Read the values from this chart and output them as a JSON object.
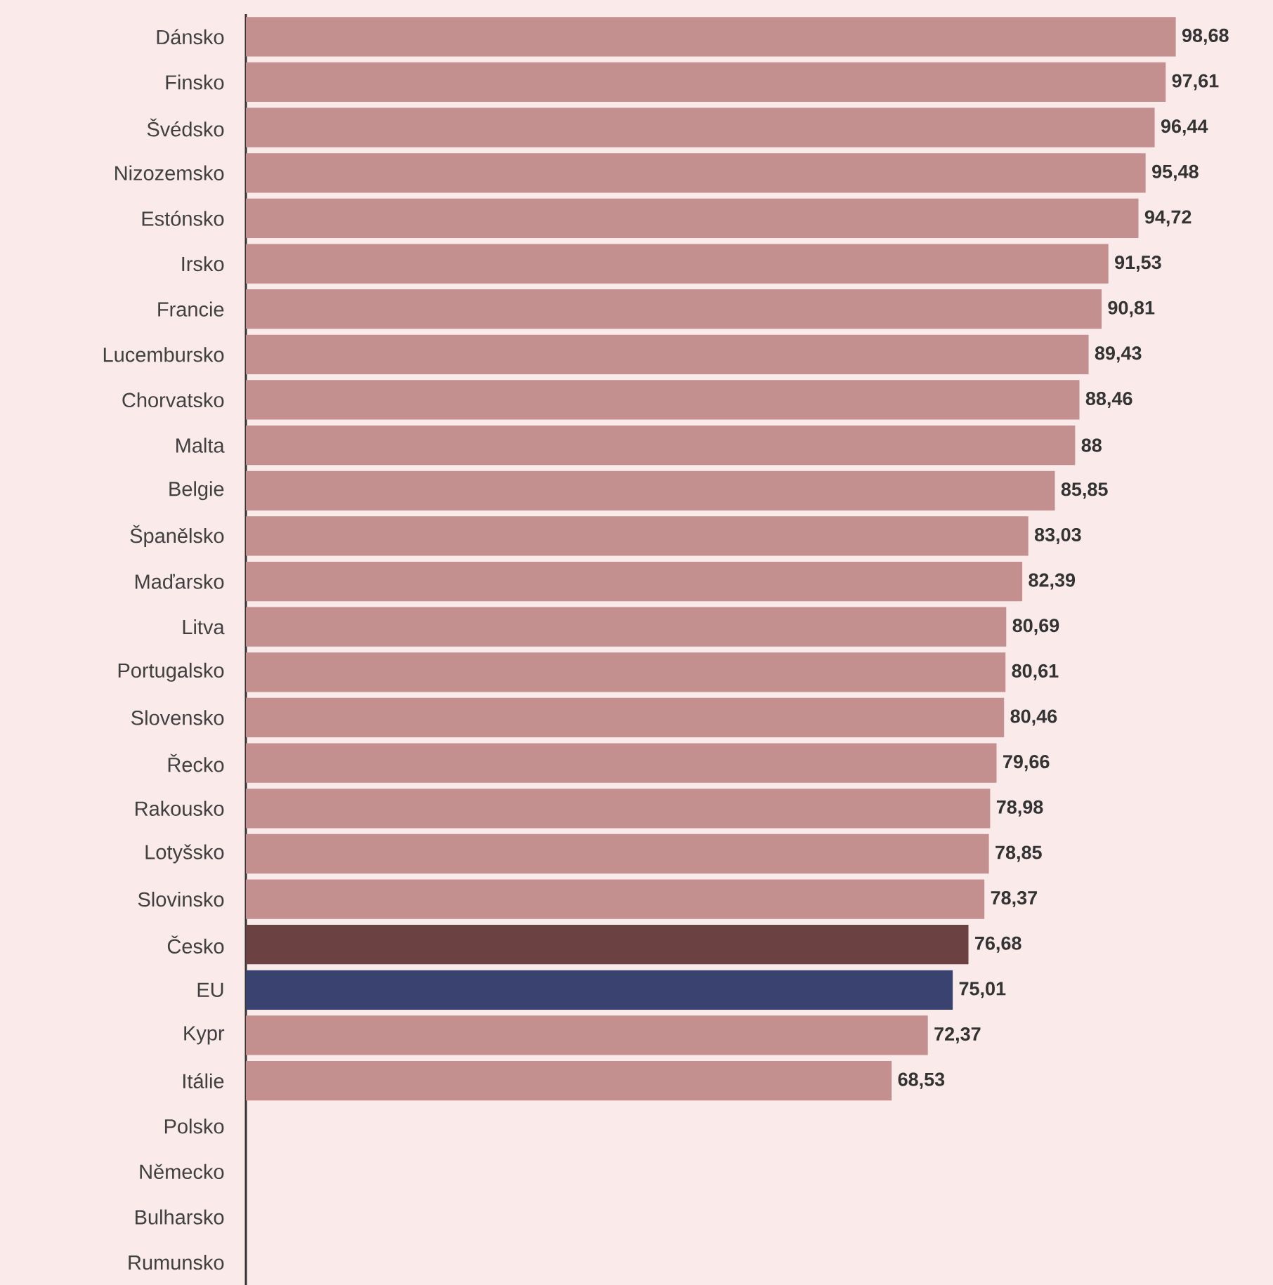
{
  "chart_data": {
    "type": "bar",
    "orientation": "horizontal",
    "categories": [
      "Dánsko",
      "Finsko",
      "Švédsko",
      "Nizozemsko",
      "Estónsko",
      "Irsko",
      "Francie",
      "Lucembursko",
      "Chorvatsko",
      "Malta",
      "Belgie",
      "Španělsko",
      "Maďarsko",
      "Litva",
      "Portugalsko",
      "Slovensko",
      "Řecko",
      "Rakousko",
      "Lotyšsko",
      "Slovinsko",
      "Česko",
      "EU",
      "Kypr",
      "Itálie",
      "Polsko",
      "Německo",
      "Bulharsko",
      "Rumunsko"
    ],
    "values": [
      98.68,
      97.61,
      96.44,
      95.48,
      94.72,
      91.53,
      90.81,
      89.43,
      88.46,
      88,
      85.85,
      83.03,
      82.39,
      80.69,
      80.61,
      80.46,
      79.66,
      78.98,
      78.85,
      78.37,
      76.68,
      75.01,
      72.37,
      68.53,
      null,
      null,
      null,
      null
    ],
    "value_labels": [
      "98,68",
      "97,61",
      "96,44",
      "95,48",
      "94,72",
      "91,53",
      "90,81",
      "89,43",
      "88,46",
      "88",
      "85,85",
      "83,03",
      "82,39",
      "80,69",
      "80,61",
      "80,46",
      "79,66",
      "78,98",
      "78,85",
      "78,37",
      "76,68",
      "75,01",
      "72,37",
      "68,53",
      null,
      null,
      null,
      null
    ],
    "colors": [
      "#c48f8f",
      "#c48f8f",
      "#c48f8f",
      "#c48f8f",
      "#c48f8f",
      "#c48f8f",
      "#c48f8f",
      "#c48f8f",
      "#c48f8f",
      "#c48f8f",
      "#c48f8f",
      "#c48f8f",
      "#c48f8f",
      "#c48f8f",
      "#c48f8f",
      "#c48f8f",
      "#c48f8f",
      "#c48f8f",
      "#c48f8f",
      "#c48f8f",
      "#6b4142",
      "#3a4270",
      "#c48f8f",
      "#c48f8f",
      "#c48f8f",
      "#c48f8f",
      "#c48f8f",
      "#c48f8f"
    ],
    "xlim": [
      0,
      109
    ],
    "tick_labels": "y"
  }
}
